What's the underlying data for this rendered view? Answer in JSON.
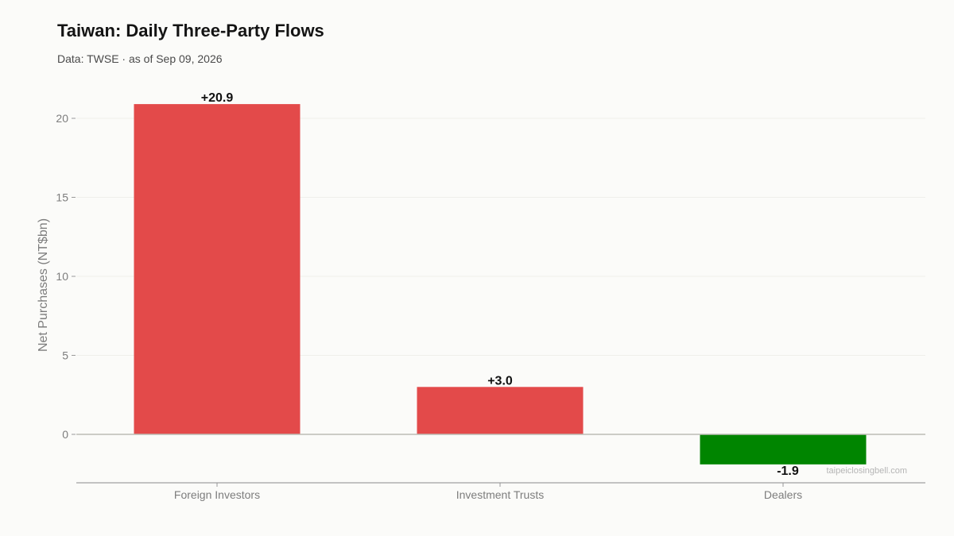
{
  "header": {
    "title": "Taiwan: Daily Three-Party Flows",
    "subtitle": "Data: TWSE · as of Sep 09, 2026"
  },
  "watermark": "taipeiclosingbell.com",
  "colors": {
    "positive": "#e34a4a",
    "negative": "#008500",
    "gridline": "#efefeb",
    "zero_line": "#bdbdb5",
    "axis_line": "#8a8a8a"
  },
  "chart_data": {
    "type": "bar",
    "title": "Taiwan: Daily Three-Party Flows",
    "subtitle": "Data: TWSE · as of Sep 09, 2026",
    "xlabel": "",
    "ylabel": "Net Purchases (NT$bn)",
    "categories": [
      "Foreign Investors",
      "Investment Trusts",
      "Dealers"
    ],
    "values": [
      20.9,
      3.0,
      -1.9
    ],
    "data_labels": [
      "+20.9",
      "+3.0",
      "-1.9"
    ],
    "ylim": [
      -3.1,
      22.0
    ],
    "yticks": [
      0,
      5,
      10,
      15,
      20
    ],
    "grid": true,
    "legend": "none"
  }
}
